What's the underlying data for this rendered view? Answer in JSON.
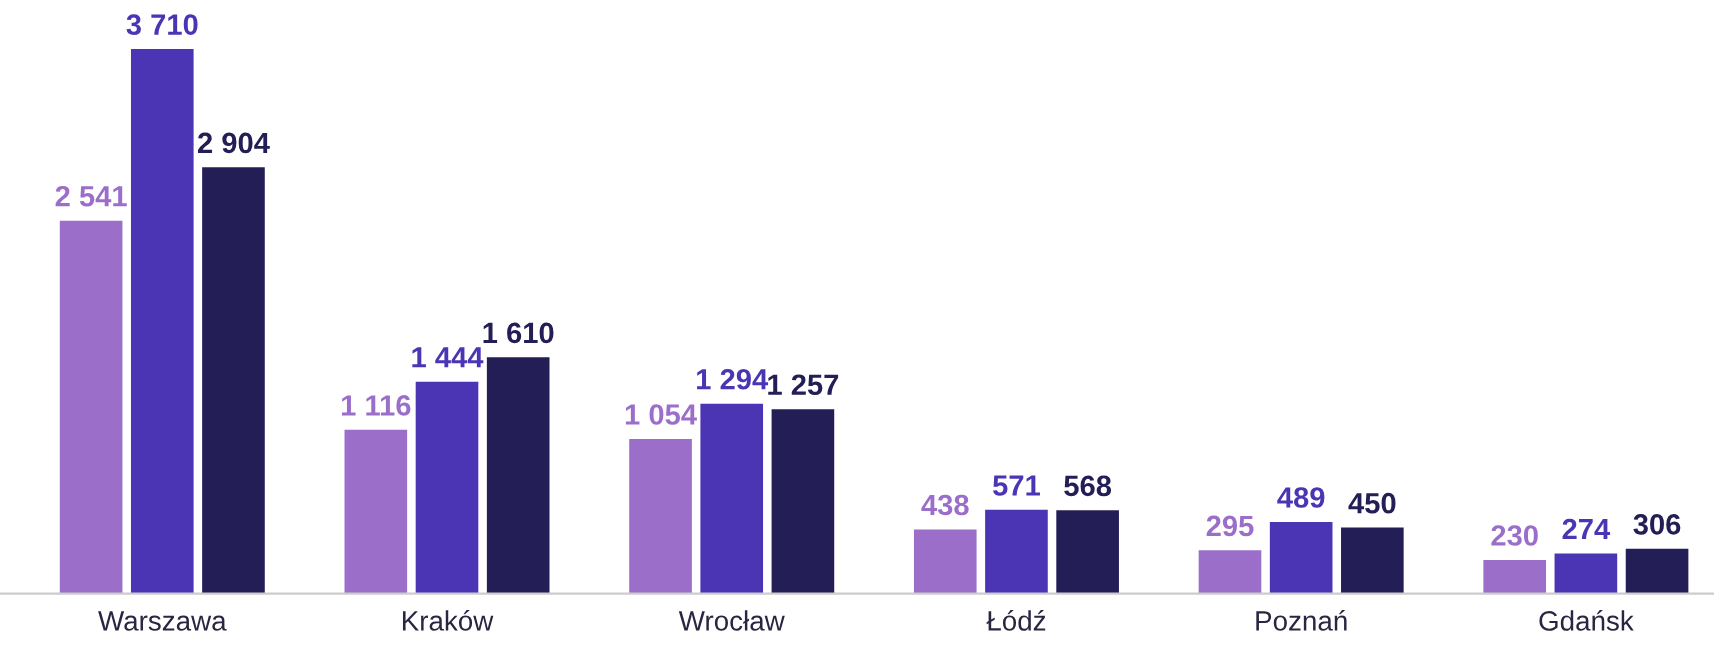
{
  "chart_data": {
    "type": "bar",
    "categories": [
      "Warszawa",
      "Kraków",
      "Wrocław",
      "Łódź",
      "Poznań",
      "Gdańsk"
    ],
    "series": [
      {
        "color": "#9b6fc9",
        "values": [
          2541,
          1116,
          1054,
          438,
          295,
          230
        ],
        "value_labels": [
          "2 541",
          "1 116",
          "1 054",
          "438",
          "295",
          "230"
        ]
      },
      {
        "color": "#4b35b5",
        "values": [
          3710,
          1444,
          1294,
          571,
          489,
          274
        ],
        "value_labels": [
          "3 710",
          "1 444",
          "1 294",
          "571",
          "489",
          "274"
        ]
      },
      {
        "color": "#231e55",
        "values": [
          2904,
          1610,
          1257,
          568,
          450,
          306
        ],
        "value_labels": [
          "2 904",
          "1 610",
          "1 257",
          "568",
          "450",
          "306"
        ]
      }
    ],
    "grid": false,
    "legend": false
  }
}
